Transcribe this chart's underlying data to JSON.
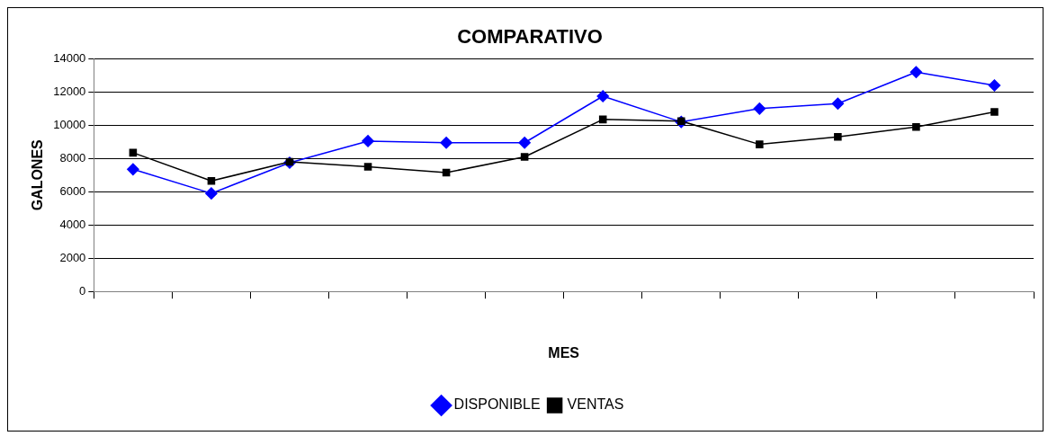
{
  "chart_data": {
    "type": "line",
    "title": "COMPARATIVO",
    "xlabel": "MES",
    "ylabel": "GALONES",
    "categories": [
      null,
      null,
      null,
      null,
      null,
      null,
      null,
      null,
      null,
      null,
      null,
      null
    ],
    "series": [
      {
        "name": "DISPONIBLE",
        "color": "#0000ff",
        "marker": "diamond",
        "values": [
          7350,
          5900,
          7750,
          9050,
          8950,
          8950,
          11750,
          10200,
          11000,
          11300,
          13200,
          12400
        ]
      },
      {
        "name": "VENTAS",
        "color": "#000000",
        "marker": "square",
        "values": [
          8350,
          6650,
          7800,
          7500,
          7150,
          8100,
          10350,
          10250,
          8850,
          9300,
          9900,
          10800
        ]
      }
    ],
    "ylim": [
      0,
      14000
    ],
    "yticks": [
      0,
      2000,
      4000,
      6000,
      8000,
      10000,
      12000,
      14000
    ],
    "grid": "y",
    "legend": "bottom",
    "line_style": "solid"
  }
}
